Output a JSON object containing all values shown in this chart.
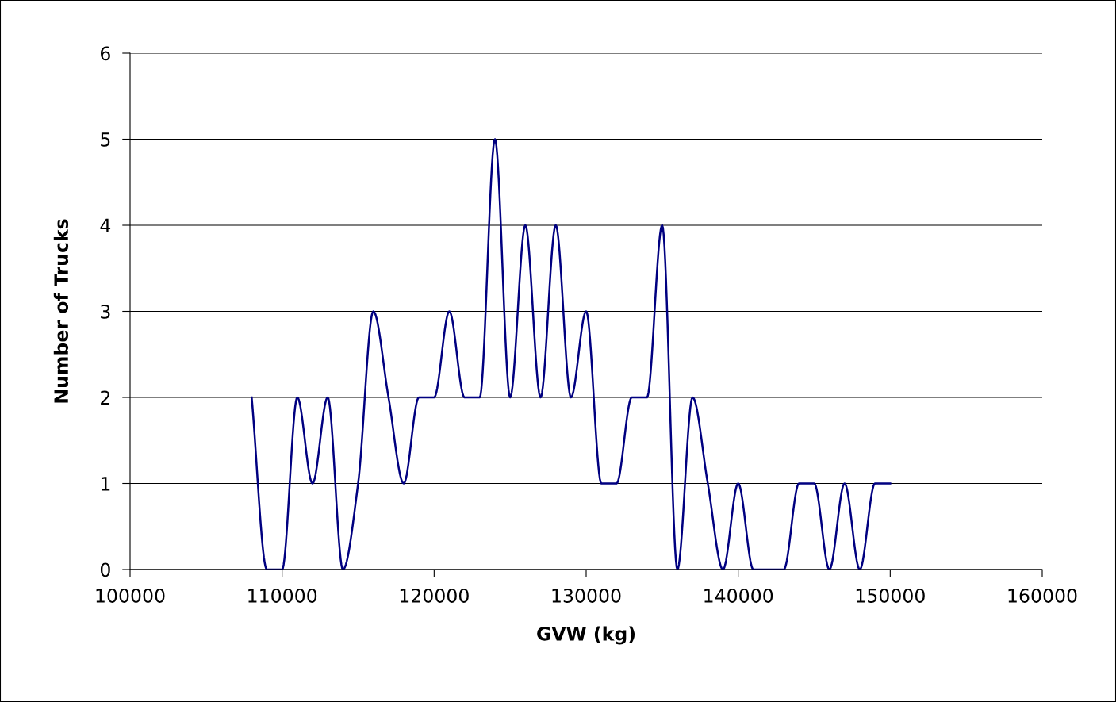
{
  "chart_data": {
    "type": "line",
    "xlabel": "GVW (kg)",
    "ylabel": "Number of Trucks",
    "x": [
      108000,
      109000,
      110000,
      111000,
      112000,
      113000,
      114000,
      115000,
      116000,
      117000,
      118000,
      119000,
      120000,
      121000,
      122000,
      123000,
      124000,
      125000,
      126000,
      127000,
      128000,
      129000,
      130000,
      131000,
      132000,
      133000,
      134000,
      135000,
      136000,
      137000,
      138000,
      139000,
      140000,
      141000,
      142000,
      143000,
      144000,
      145000,
      146000,
      147000,
      148000,
      149000,
      150000
    ],
    "series": [
      {
        "color": "#000080",
        "values": [
          2,
          0,
          0,
          2,
          1,
          2,
          0,
          1,
          3,
          2,
          1,
          2,
          2,
          3,
          2,
          2,
          5,
          2,
          4,
          2,
          4,
          2,
          3,
          1,
          1,
          2,
          2,
          4,
          0,
          2,
          1,
          0,
          1,
          0,
          0,
          0,
          1,
          1,
          0,
          1,
          0,
          1,
          1
        ]
      }
    ],
    "xlim": [
      100000,
      160000
    ],
    "xticks": [
      100000,
      110000,
      120000,
      130000,
      140000,
      150000,
      160000
    ],
    "ylim": [
      0,
      6
    ],
    "yticks": [
      0,
      1,
      2,
      3,
      4,
      5,
      6
    ],
    "grid": "y",
    "legend": false,
    "marker": "none",
    "line_style": "solid"
  }
}
